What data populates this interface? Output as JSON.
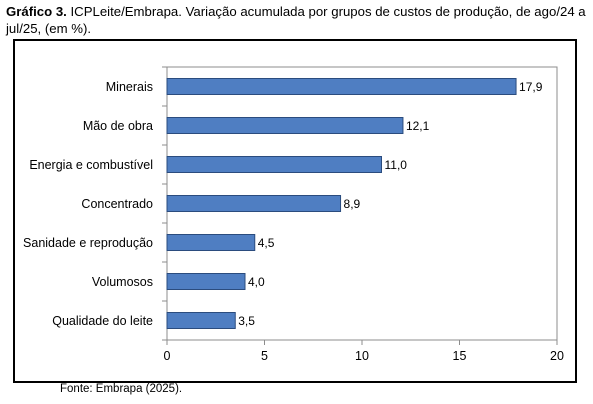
{
  "caption": {
    "label": "Gráfico 3.",
    "text": "ICPLeite/Embrapa. Variação acumulada por grupos de custos de produção, de ago/24 a jul/25, (em %)."
  },
  "source": "Fonte: Embrapa (2025).",
  "chart_data": {
    "type": "bar",
    "orientation": "horizontal",
    "categories": [
      "Minerais",
      "Mão de obra",
      "Energia e combustível",
      "Concentrado",
      "Sanidade e reprodução",
      "Volumosos",
      "Qualidade do leite"
    ],
    "values": [
      17.9,
      12.1,
      11.0,
      8.9,
      4.5,
      4.0,
      3.5
    ],
    "value_labels": [
      "17,9",
      "12,1",
      "11,0",
      "8,9",
      "4,5",
      "4,0",
      "3,5"
    ],
    "xlim": [
      0,
      20
    ],
    "xticks": [
      0,
      5,
      10,
      15,
      20
    ],
    "xtick_labels": [
      "0",
      "5",
      "10",
      "15",
      "20"
    ],
    "grid": false,
    "legend": "none",
    "colors": {
      "bar_fill": "#4f7ec2",
      "bar_stroke": "#2b4c7e",
      "frame": "#000000"
    }
  }
}
